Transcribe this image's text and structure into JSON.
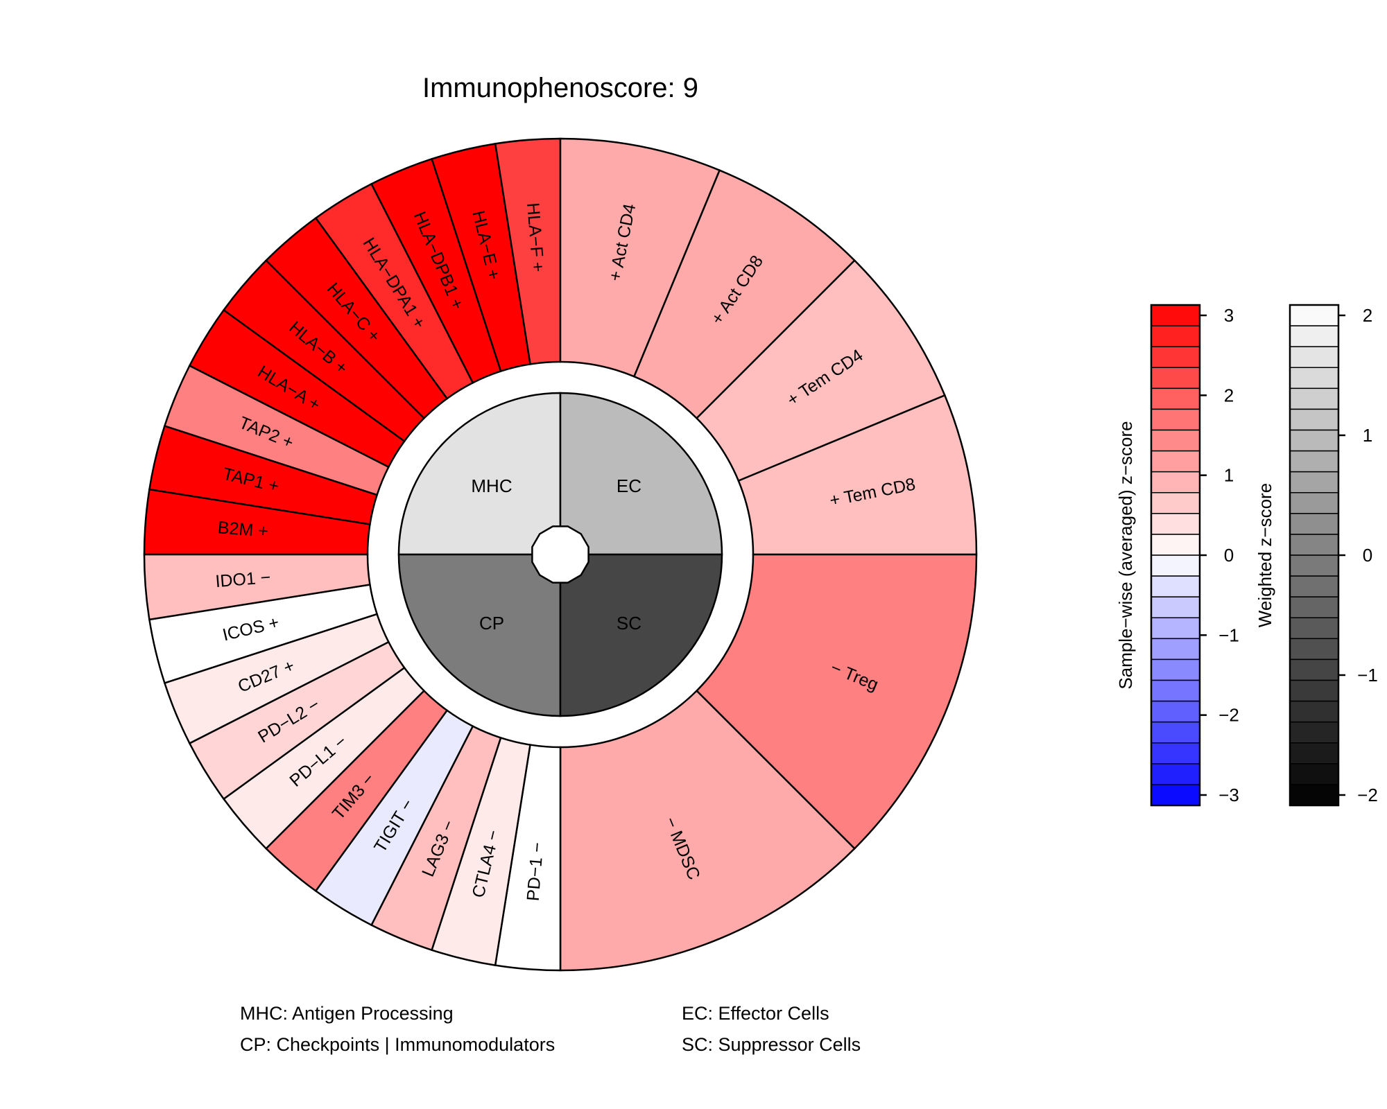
{
  "chart_data": {
    "type": "polar-bar",
    "title": "Immunophenoscore: 9",
    "categories": [
      {
        "abbr": "MHC",
        "value": 1.55
      },
      {
        "abbr": "EC",
        "value": 0.93
      },
      {
        "abbr": "CP",
        "value": -0.05
      },
      {
        "abbr": "SC",
        "value": -0.9
      }
    ],
    "segments": {
      "MHC": [
        {
          "label": "HLA−F +",
          "value": 2.3
        },
        {
          "label": "HLA−E +",
          "value": 3.0
        },
        {
          "label": "HLA−DPB1 +",
          "value": 3.0
        },
        {
          "label": "HLA−DPA1 +",
          "value": 2.4
        },
        {
          "label": "HLA−C +",
          "value": 3.0
        },
        {
          "label": "HLA−B +",
          "value": 3.0
        },
        {
          "label": "HLA−A +",
          "value": 3.0
        },
        {
          "label": "TAP2 +",
          "value": 1.4
        },
        {
          "label": "TAP1 +",
          "value": 3.0
        },
        {
          "label": "B2M +",
          "value": 3.0
        }
      ],
      "EC": [
        {
          "label": "+ Act CD4",
          "value": 1.0
        },
        {
          "label": "+ Act CD8",
          "value": 1.1
        },
        {
          "label": "+ Tem CD4",
          "value": 0.8
        },
        {
          "label": "+ Tem CD8",
          "value": 0.8
        }
      ],
      "SC": [
        {
          "label": "− Treg",
          "value": 1.5
        },
        {
          "label": "− MDSC",
          "value": 1.1
        }
      ],
      "CP": [
        {
          "label": "PD−1 −",
          "value": 0.1
        },
        {
          "label": "CTLA4 −",
          "value": 0.2
        },
        {
          "label": "LAG3 −",
          "value": 0.7
        },
        {
          "label": "TIGIT −",
          "value": -0.3
        },
        {
          "label": "TIM3 −",
          "value": 1.4
        },
        {
          "label": "PD−L1 −",
          "value": 0.3
        },
        {
          "label": "PD−L2 −",
          "value": 0.4
        },
        {
          "label": "CD27 +",
          "value": 0.3
        },
        {
          "label": "ICOS +",
          "value": 0.05
        },
        {
          "label": "IDO1 −",
          "value": 0.8
        }
      ]
    },
    "colorbar_z": {
      "title": "Sample−wise (averaged) z−score",
      "range": [
        -3,
        3
      ],
      "ticks": [
        "3",
        "2",
        "1",
        "0",
        "−1",
        "−2",
        "−3"
      ],
      "color_low": "#0000ff",
      "color_mid": "#ffffff",
      "color_high": "#ff0000"
    },
    "colorbar_weighted": {
      "title": "Weighted z−score",
      "range": [
        -2,
        2
      ],
      "ticks": [
        "2",
        "1",
        "0",
        "−1",
        "−2"
      ],
      "color_low": "#000000",
      "color_high": "#ffffff"
    },
    "footnotes": [
      "MHC: Antigen Processing",
      "EC: Effector Cells",
      "CP: Checkpoints | Immunomodulators",
      "SC: Suppressor Cells"
    ]
  }
}
